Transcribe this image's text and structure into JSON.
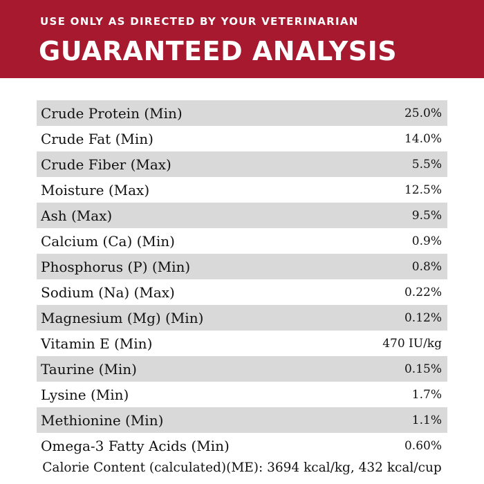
{
  "header": {
    "subtitle": "USE ONLY AS DIRECTED BY YOUR VETERINARIAN",
    "title": "GUARANTEED ANALYSIS"
  },
  "table": {
    "rows": [
      [
        "Crude Protein (Min)",
        "25.0%"
      ],
      [
        "Crude Fat (Min)",
        "14.0%"
      ],
      [
        "Crude Fiber (Max)",
        "5.5%"
      ],
      [
        "Moisture (Max)",
        "12.5%"
      ],
      [
        "Ash (Max)",
        "9.5%"
      ],
      [
        "Calcium (Ca) (Min)",
        "0.9%"
      ],
      [
        "Phosphorus (P) (Min)",
        "0.8%"
      ],
      [
        "Sodium (Na) (Max)",
        "0.22%"
      ],
      [
        "Magnesium (Mg) (Min)",
        "0.12%"
      ],
      [
        "Vitamin E (Min)",
        "470 IU/kg"
      ],
      [
        "Taurine (Min)",
        "0.15%"
      ],
      [
        "Lysine (Min)",
        "1.7%"
      ],
      [
        "Methionine (Min)",
        "1.1%"
      ],
      [
        "Omega-3 Fatty Acids (Min)",
        "0.60%"
      ]
    ]
  },
  "footer": "Calorie Content (calculated)(ME): 3694 kcal/kg, 432 kcal/cup"
}
